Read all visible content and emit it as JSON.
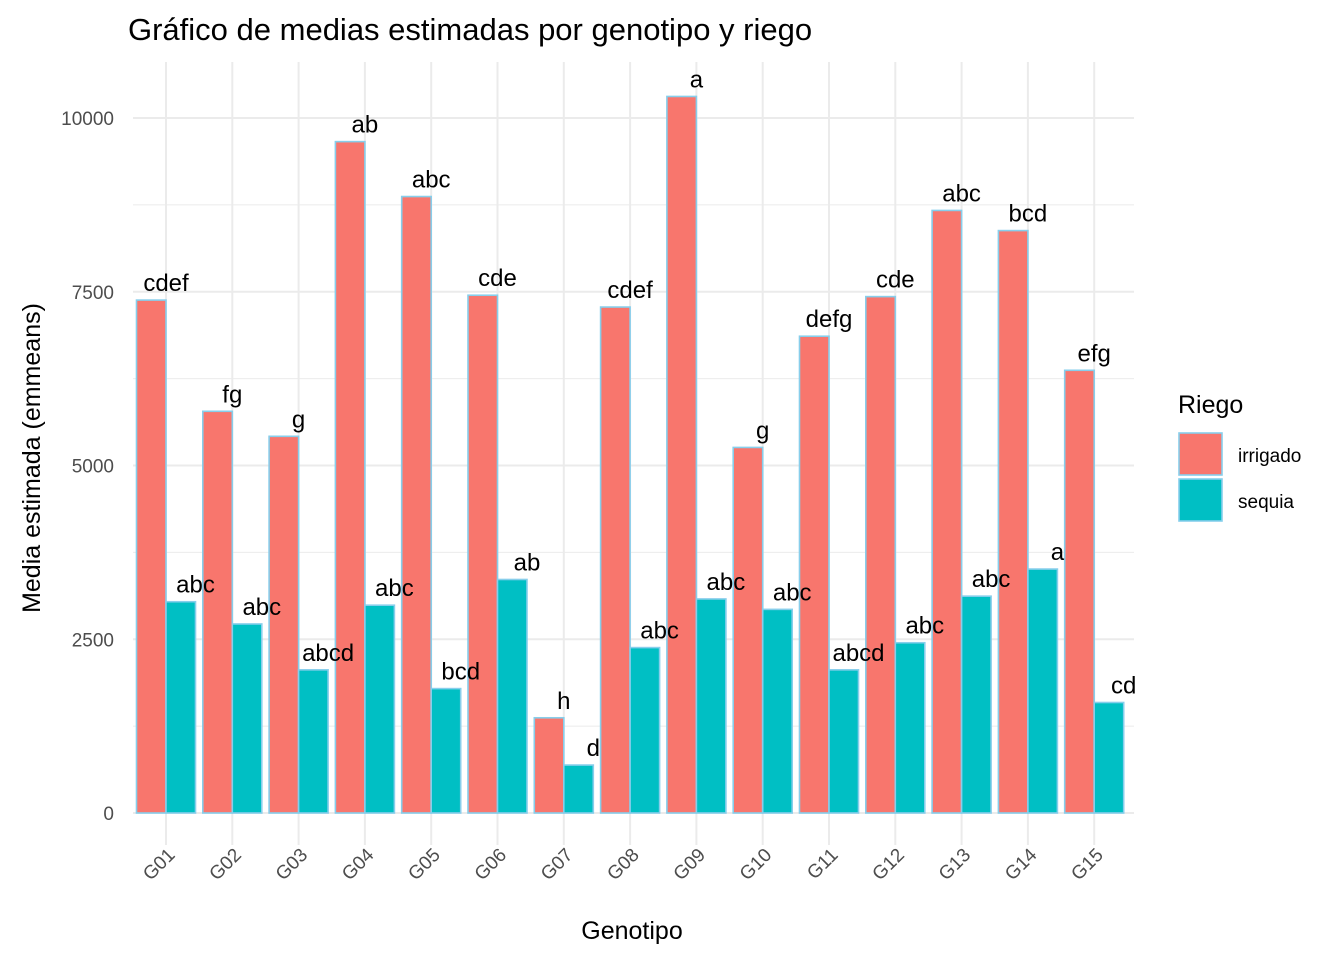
{
  "chart_data": {
    "type": "bar",
    "title": "Gráfico de medias estimadas por genotipo y riego",
    "xlabel": "Genotipo",
    "ylabel": "Media estimada (emmeans)",
    "ylim": [
      -450,
      10800
    ],
    "yticks": [
      0,
      2500,
      5000,
      7500,
      10000
    ],
    "grid": true,
    "legend": {
      "title": "Riego",
      "position": "right"
    },
    "categories": [
      "G01",
      "G02",
      "G03",
      "G04",
      "G05",
      "G06",
      "G07",
      "G08",
      "G09",
      "G10",
      "G11",
      "G12",
      "G13",
      "G14",
      "G15"
    ],
    "series": [
      {
        "name": "irrigado",
        "color": "#F8766D",
        "values": [
          7380,
          5780,
          5420,
          9660,
          8870,
          7450,
          1370,
          7280,
          10310,
          5260,
          6860,
          7430,
          8670,
          8380,
          6370
        ],
        "labels": [
          "cdef",
          "fg",
          "g",
          "ab",
          "abc",
          "cde",
          "h",
          "cdef",
          "a",
          "g",
          "defg",
          "cde",
          "abc",
          "bcd",
          "efg"
        ]
      },
      {
        "name": "sequia",
        "color": "#00BFC4",
        "values": [
          3040,
          2720,
          2060,
          2990,
          1790,
          3360,
          690,
          2380,
          3080,
          2930,
          2060,
          2450,
          3120,
          3510,
          1590
        ],
        "labels": [
          "abc",
          "abc",
          "abcd",
          "abc",
          "bcd",
          "ab",
          "d",
          "abc",
          "abc",
          "abc",
          "abcd",
          "abc",
          "abc",
          "a",
          "cd"
        ]
      }
    ],
    "bar_outline_color": "#87CEEB",
    "grid_color": "#EBEBEB",
    "tick_label_color": "#4D4D4D"
  }
}
